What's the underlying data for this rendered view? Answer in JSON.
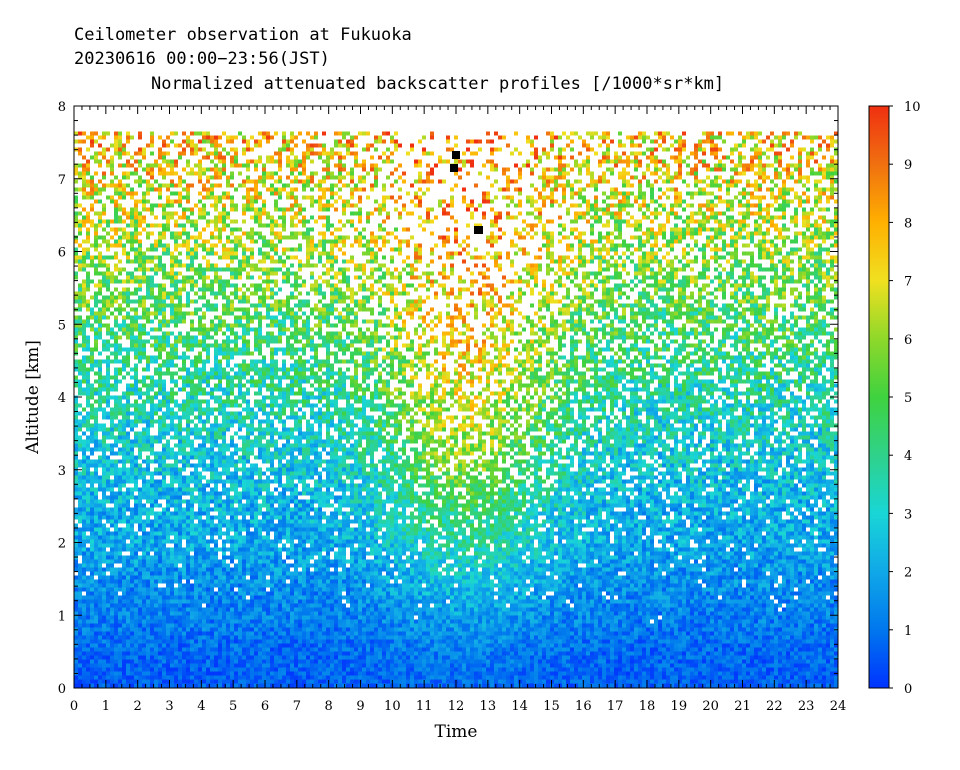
{
  "chart_data": {
    "type": "heatmap",
    "header_line1": "Ceilometer observation at Fukuoka",
    "header_line2": "20230616  00:00−23:56(JST)",
    "title": "Normalized attenuated backscatter profiles [/1000*sr*km]",
    "xlabel": "Time",
    "ylabel": "Altitude [km]",
    "xlim": [
      0,
      24
    ],
    "ylim": [
      0,
      8
    ],
    "x_ticks": [
      "0",
      "1",
      "2",
      "3",
      "4",
      "5",
      "6",
      "7",
      "8",
      "9",
      "10",
      "11",
      "12",
      "13",
      "14",
      "15",
      "16",
      "17",
      "18",
      "19",
      "20",
      "21",
      "22",
      "23",
      "24"
    ],
    "y_ticks": [
      "0",
      "1",
      "2",
      "3",
      "4",
      "5",
      "6",
      "7",
      "8"
    ],
    "colorbar": {
      "range": [
        0,
        10
      ],
      "ticks": [
        "0",
        "1",
        "2",
        "3",
        "4",
        "5",
        "6",
        "7",
        "8",
        "9",
        "10"
      ],
      "colors": [
        "#0033ff",
        "#0077ee",
        "#10a8e8",
        "#19d6d6",
        "#2fd28a",
        "#3fd23f",
        "#8fd82a",
        "#f0e020",
        "#ffb000",
        "#f07010",
        "#f03010"
      ]
    },
    "data_top_altitude_km": 7.65,
    "profile_summary": {
      "altitude_km": [
        0,
        0.5,
        1,
        1.5,
        2,
        2.5,
        3,
        3.5,
        4,
        4.5,
        5,
        5.5,
        6,
        6.5,
        7,
        7.5
      ],
      "typical_value_offpeak": [
        0.6,
        0.8,
        1.2,
        1.5,
        2.0,
        2.2,
        2.6,
        3.0,
        3.5,
        4.0,
        4.6,
        5.2,
        5.8,
        6.4,
        7.0,
        7.6
      ],
      "typical_value_midday": [
        0.8,
        1.2,
        1.8,
        2.6,
        3.6,
        4.5,
        5.5,
        6.2,
        6.8,
        7.3,
        7.6,
        7.8,
        8.0,
        8.2,
        8.4,
        8.5
      ]
    },
    "grid": false,
    "legend": "colorbar-right"
  },
  "colors": {
    "frame": "#000000",
    "background": "#ffffff"
  }
}
